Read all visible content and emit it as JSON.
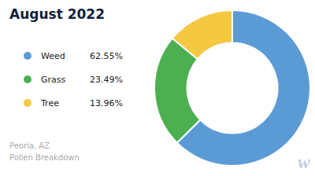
{
  "chart_data": {
    "type": "doughnut",
    "title": "August 2022",
    "subtitle": "Peoria, AZ\nPollen Breakdown",
    "categories": [
      "Weed",
      "Grass",
      "Tree"
    ],
    "values": [
      62.55,
      23.49,
      13.96
    ],
    "value_labels": [
      "62.55%",
      "23.49%",
      "13.96%"
    ],
    "colors": [
      "#5b9bd5",
      "#4caf50",
      "#f5c842"
    ],
    "annotations": [
      "w"
    ]
  }
}
